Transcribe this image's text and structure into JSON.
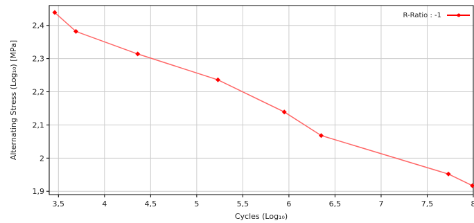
{
  "chart_data": {
    "type": "line",
    "title": "",
    "xlabel": "Cycles  (Log₁₀)",
    "ylabel": "Alternating Stress  (Log₁₀)  [MPa]",
    "xlim": [
      3.4,
      8.0
    ],
    "ylim": [
      1.89,
      2.46
    ],
    "x_ticks": [
      3.5,
      4,
      4.5,
      5,
      5.5,
      6,
      6.5,
      7,
      7.5,
      8
    ],
    "x_tick_labels": [
      "3,5",
      "4",
      "4,5",
      "5",
      "5,5",
      "6",
      "6,5",
      "7",
      "7,5",
      "8"
    ],
    "y_ticks": [
      1.9,
      2.0,
      2.1,
      2.2,
      2.3,
      2.4
    ],
    "y_tick_labels": [
      "1,9",
      "2",
      "2,1",
      "2,2",
      "2,3",
      "2,4"
    ],
    "grid": true,
    "legend_position": "top-right",
    "series": [
      {
        "name": "R-Ratio : -1",
        "color": "#ff0000",
        "line_color": "#ff6666",
        "x": [
          3.46,
          3.69,
          4.36,
          5.23,
          5.95,
          6.35,
          7.73,
          7.99
        ],
        "y": [
          2.439,
          2.382,
          2.314,
          2.236,
          2.139,
          2.068,
          1.952,
          1.917
        ]
      }
    ]
  }
}
